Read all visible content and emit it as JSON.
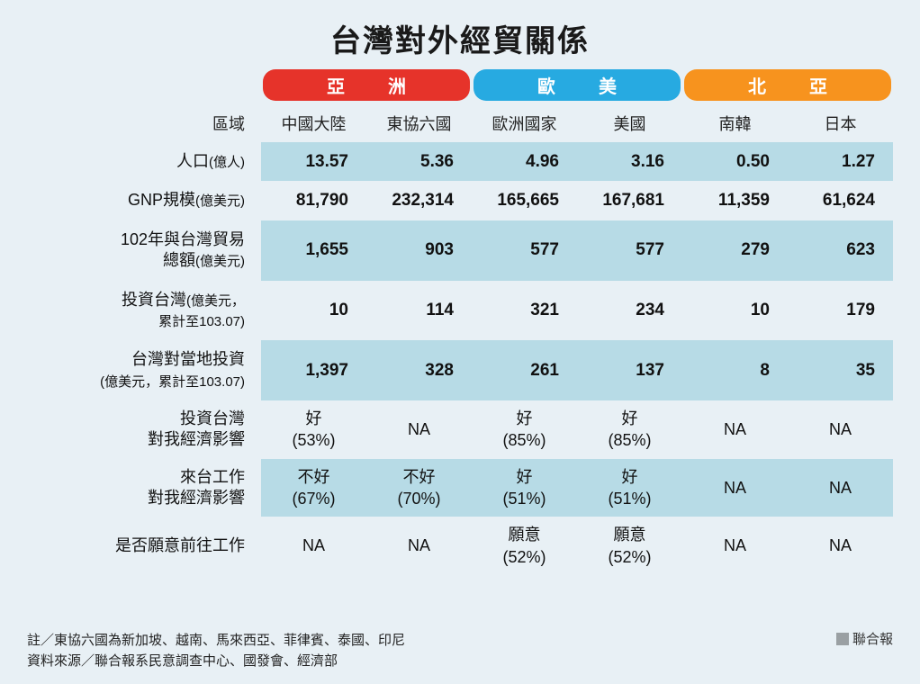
{
  "title": "台灣對外經貿關係",
  "region_label": "區域",
  "colors": {
    "asia": "#e6332a",
    "euus": "#27aae1",
    "neasia": "#f7931e",
    "row_alt": "#b7dbe6",
    "background": "#e8f0f5"
  },
  "groups": [
    {
      "label": "亞　洲",
      "span": 2,
      "color": "#e6332a"
    },
    {
      "label": "歐　美",
      "span": 2,
      "color": "#27aae1"
    },
    {
      "label": "北　亞",
      "span": 2,
      "color": "#f7931e"
    }
  ],
  "columns": [
    "中國大陸",
    "東協六國",
    "歐洲國家",
    "美國",
    "南韓",
    "日本"
  ],
  "rows": [
    {
      "label_main": "人口",
      "label_unit": "(億人)",
      "cells": [
        "13.57",
        "5.36",
        "4.96",
        "3.16",
        "0.50",
        "1.27"
      ],
      "style": "num"
    },
    {
      "label_main": "GNP規模",
      "label_unit": "(億美元)",
      "cells": [
        "81,790",
        "232,314",
        "165,665",
        "167,681",
        "11,359",
        "61,624"
      ],
      "style": "num"
    },
    {
      "label_main": "102年與台灣貿易",
      "label_main2": "總額",
      "label_unit": "(億美元)",
      "cells": [
        "1,655",
        "903",
        "577",
        "577",
        "279",
        "623"
      ],
      "style": "num"
    },
    {
      "label_main": "投資台灣",
      "label_unit": "(億美元，",
      "label_main2": "累計至103.07)",
      "cells": [
        "10",
        "114",
        "321",
        "234",
        "10",
        "179"
      ],
      "style": "num"
    },
    {
      "label_main": "台灣對當地投資",
      "label_unit2": "(億美元，累計至103.07)",
      "cells": [
        "1,397",
        "328",
        "261",
        "137",
        "8",
        "35"
      ],
      "style": "num"
    },
    {
      "label_main": "投資台灣",
      "label_main2": "對我經濟影響",
      "cells_2l": [
        [
          "好",
          "(53%)"
        ],
        [
          "NA",
          ""
        ],
        [
          "好",
          "(85%)"
        ],
        [
          "好",
          "(85%)"
        ],
        [
          "NA",
          ""
        ],
        [
          "NA",
          ""
        ]
      ],
      "style": "txt"
    },
    {
      "label_main": "來台工作",
      "label_main2": "對我經濟影響",
      "cells_2l": [
        [
          "不好",
          "(67%)"
        ],
        [
          "不好",
          "(70%)"
        ],
        [
          "好",
          "(51%)"
        ],
        [
          "好",
          "(51%)"
        ],
        [
          "NA",
          ""
        ],
        [
          "NA",
          ""
        ]
      ],
      "style": "txt"
    },
    {
      "label_main": "是否願意前往工作",
      "cells_2l": [
        [
          "NA",
          ""
        ],
        [
          "NA",
          ""
        ],
        [
          "願意",
          "(52%)"
        ],
        [
          "願意",
          "(52%)"
        ],
        [
          "NA",
          ""
        ],
        [
          "NA",
          ""
        ]
      ],
      "style": "txt"
    }
  ],
  "footnote1": "註／東協六國為新加坡、越南、馬來西亞、菲律賓、泰國、印尼",
  "footnote2": "資料來源／聯合報系民意調查中心、國發會、經濟部",
  "source": "聯合報"
}
